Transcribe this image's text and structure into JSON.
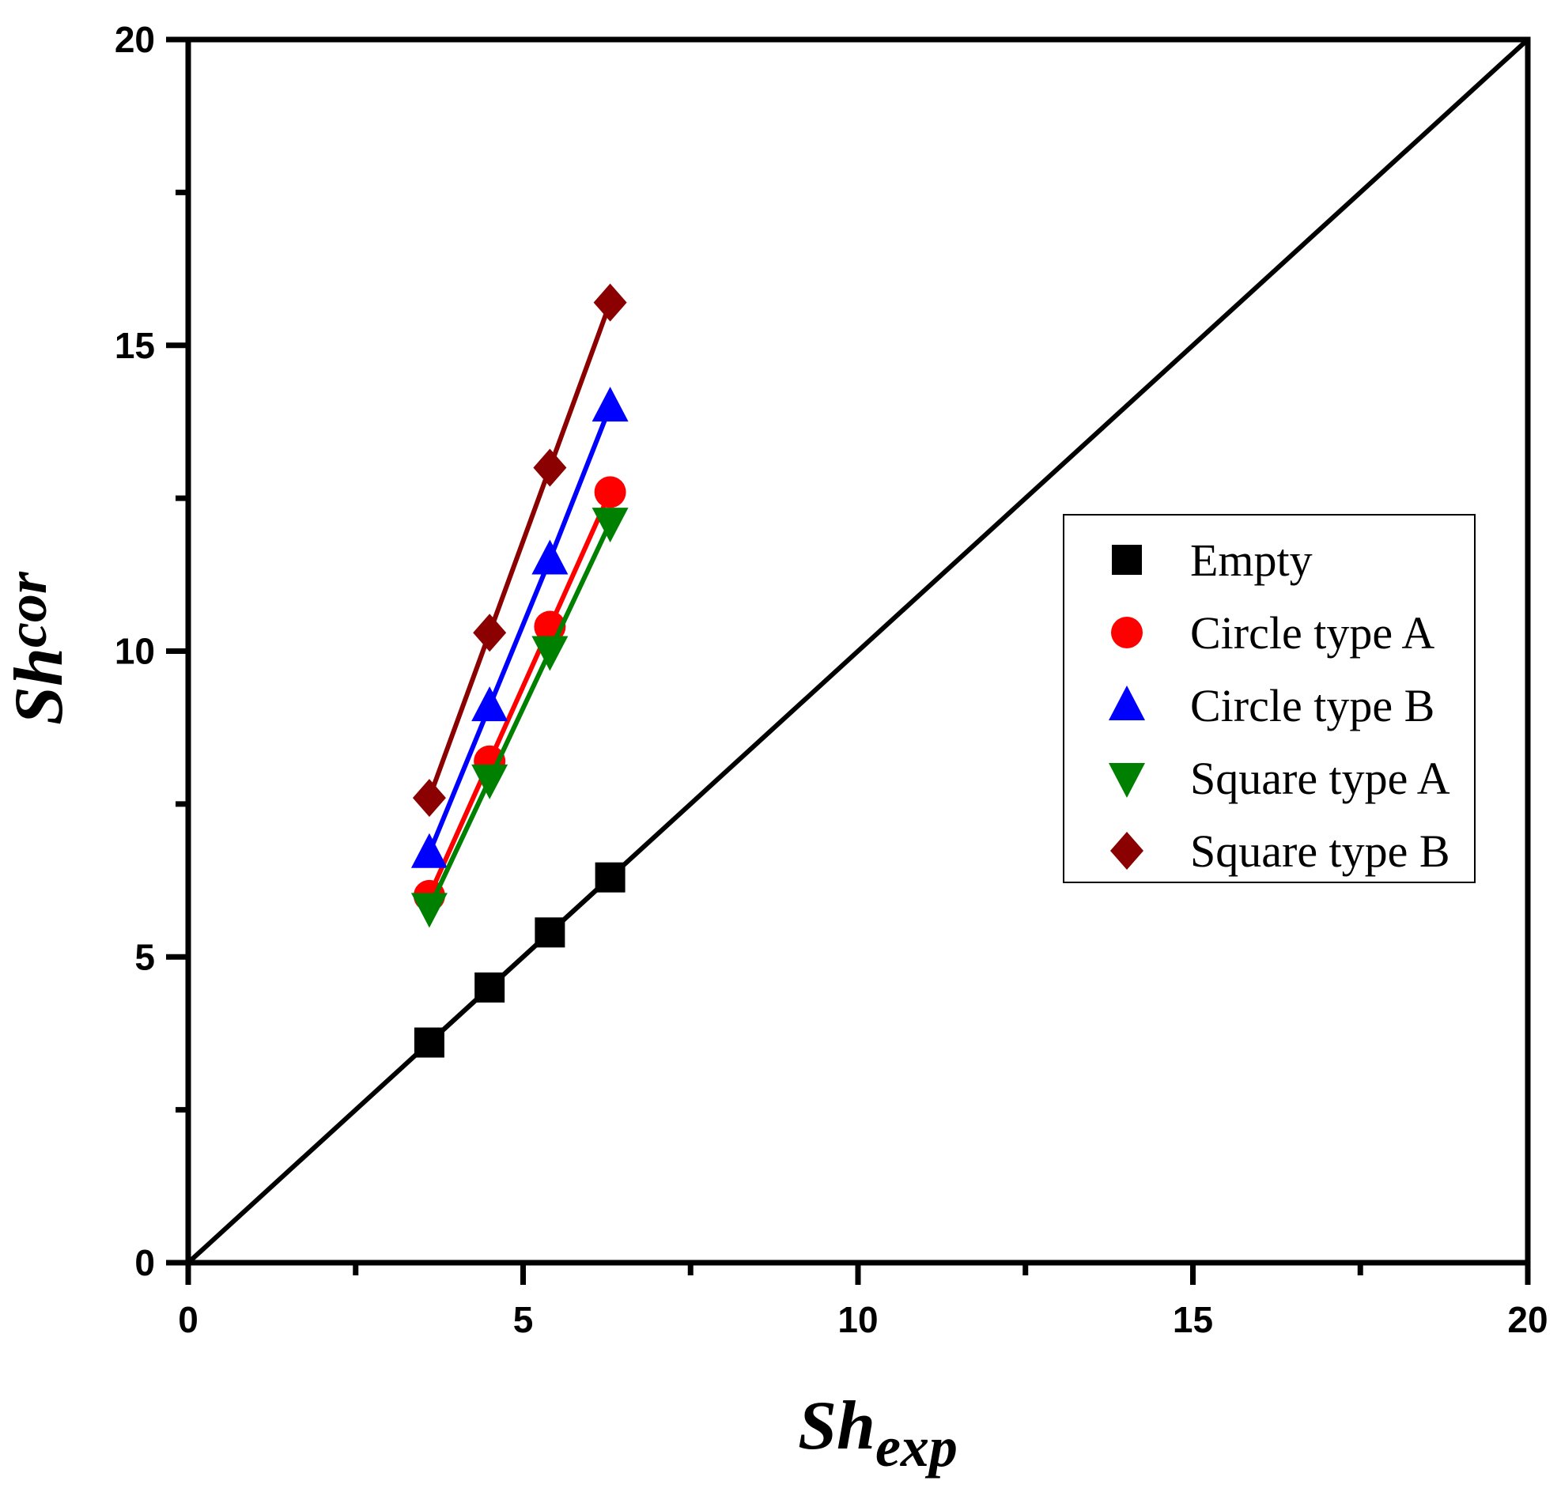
{
  "chart_data": {
    "type": "line",
    "title": "",
    "xlabel": {
      "main": "Sh",
      "sub": "exp"
    },
    "ylabel": {
      "main": "Sh",
      "sub": "cor"
    },
    "xlim": [
      0,
      20
    ],
    "ylim": [
      0,
      20
    ],
    "x_ticks": [
      "0",
      "5",
      "10",
      "15",
      "20"
    ],
    "y_ticks": [
      "0",
      "5",
      "10",
      "15",
      "20"
    ],
    "grid": false,
    "legend_position": "right",
    "reference_line": {
      "name": "y = x",
      "x": [
        0,
        20
      ],
      "y": [
        0,
        20
      ],
      "color": "#000000"
    },
    "series": [
      {
        "name": "Empty",
        "marker": "square",
        "color": "#000000",
        "x": [
          3.6,
          4.5,
          5.4,
          6.3
        ],
        "y": [
          3.6,
          4.5,
          5.4,
          6.3
        ]
      },
      {
        "name": "Circle type A",
        "marker": "circle",
        "color": "#ff0000",
        "x": [
          3.6,
          4.5,
          5.4,
          6.3
        ],
        "y": [
          6.0,
          8.2,
          10.4,
          12.6
        ]
      },
      {
        "name": "Circle type B",
        "marker": "triangle-up",
        "color": "#0000ff",
        "x": [
          3.6,
          4.5,
          5.4,
          6.3
        ],
        "y": [
          6.7,
          9.1,
          11.5,
          14.0
        ]
      },
      {
        "name": "Square type A",
        "marker": "triangle-down",
        "color": "#008000",
        "x": [
          3.6,
          4.5,
          5.4,
          6.3
        ],
        "y": [
          5.8,
          7.9,
          10.0,
          12.1
        ]
      },
      {
        "name": "Square type B",
        "marker": "diamond",
        "color": "#8b0000",
        "x": [
          3.6,
          4.5,
          5.4,
          6.3
        ],
        "y": [
          7.6,
          10.3,
          13.0,
          15.7
        ]
      }
    ]
  }
}
